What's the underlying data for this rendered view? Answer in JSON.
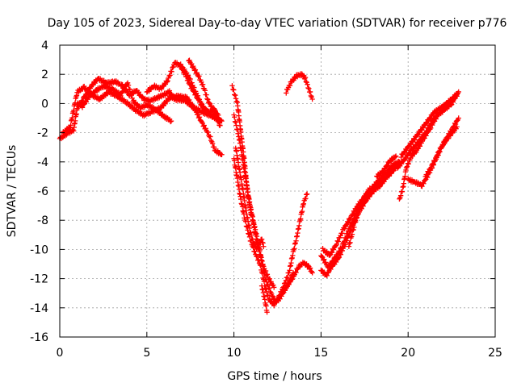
{
  "chart_data": {
    "type": "scatter",
    "title": "Day 105 of 2023, Sidereal Day-to-day VTEC variation (SDTVAR) for receiver p776",
    "xlabel": "GPS time / hours",
    "ylabel": "SDTVAR / TECUs",
    "xlim": [
      0,
      25
    ],
    "ylim": [
      -16,
      4
    ],
    "xticks": [
      "0",
      "5",
      "10",
      "15",
      "20",
      "25"
    ],
    "yticks": [
      "4",
      "2",
      "0",
      "-2",
      "-4",
      "-6",
      "-8",
      "-10",
      "-12",
      "-14",
      "-16"
    ],
    "grid": true,
    "marker": "+",
    "color": "#ff0000",
    "series": [
      {
        "tracks": [
          [
            [
              0.0,
              -2.4
            ],
            [
              0.5,
              -2.0
            ],
            [
              0.8,
              -1.8
            ],
            [
              1.0,
              -0.3
            ],
            [
              1.4,
              0.4
            ],
            [
              1.8,
              1.2
            ],
            [
              2.2,
              1.7
            ],
            [
              2.7,
              1.4
            ],
            [
              3.2,
              1.5
            ],
            [
              3.6,
              1.2
            ],
            [
              4.0,
              0.6
            ],
            [
              4.4,
              0.9
            ],
            [
              4.8,
              0.3
            ],
            [
              5.2,
              0.2
            ],
            [
              5.8,
              0.5
            ],
            [
              6.3,
              0.8
            ],
            [
              6.6,
              0.3
            ],
            [
              7.2,
              0.2
            ],
            [
              7.6,
              -0.2
            ],
            [
              8.2,
              -0.6
            ],
            [
              8.8,
              -0.9
            ],
            [
              9.3,
              -1.2
            ]
          ],
          [
            [
              0.2,
              -2.0
            ],
            [
              0.6,
              -1.6
            ],
            [
              1.0,
              0.8
            ],
            [
              1.4,
              1.1
            ],
            [
              1.8,
              0.6
            ],
            [
              2.3,
              0.3
            ],
            [
              2.8,
              0.8
            ],
            [
              3.3,
              0.5
            ],
            [
              3.8,
              0.1
            ],
            [
              4.3,
              -0.4
            ],
            [
              4.8,
              -0.8
            ],
            [
              5.2,
              -0.6
            ],
            [
              5.8,
              -0.3
            ],
            [
              6.3,
              0.4
            ],
            [
              6.8,
              0.5
            ],
            [
              7.3,
              0.4
            ],
            [
              7.8,
              -0.5
            ],
            [
              8.2,
              -1.4
            ],
            [
              8.6,
              -2.2
            ],
            [
              8.9,
              -3.2
            ],
            [
              9.3,
              -3.5
            ]
          ],
          [
            [
              1.0,
              0.0
            ],
            [
              1.3,
              -0.2
            ],
            [
              1.7,
              0.5
            ],
            [
              2.1,
              0.9
            ],
            [
              2.5,
              1.2
            ],
            [
              3.0,
              1.0
            ],
            [
              3.5,
              0.6
            ],
            [
              3.9,
              1.4
            ],
            [
              4.2,
              0.2
            ],
            [
              4.6,
              -0.3
            ],
            [
              5.0,
              -0.1
            ],
            [
              5.5,
              -0.4
            ],
            [
              6.0,
              -0.9
            ],
            [
              6.4,
              -1.2
            ]
          ],
          [
            [
              5.0,
              0.8
            ],
            [
              5.4,
              1.2
            ],
            [
              5.8,
              1.0
            ],
            [
              6.2,
              1.6
            ],
            [
              6.6,
              2.8
            ],
            [
              6.9,
              2.6
            ],
            [
              7.2,
              2.0
            ],
            [
              7.5,
              1.2
            ],
            [
              7.9,
              0.4
            ],
            [
              8.3,
              -0.4
            ],
            [
              8.6,
              -0.6
            ],
            [
              8.9,
              -0.4
            ],
            [
              9.2,
              -1.5
            ]
          ],
          [
            [
              7.4,
              3.0
            ],
            [
              7.7,
              2.4
            ],
            [
              8.0,
              1.8
            ],
            [
              8.3,
              1.0
            ],
            [
              8.5,
              0.2
            ],
            [
              8.8,
              -0.4
            ],
            [
              9.1,
              -0.8
            ]
          ],
          [
            [
              6.9,
              2.7
            ],
            [
              7.2,
              2.2
            ],
            [
              7.5,
              1.6
            ],
            [
              7.8,
              0.8
            ],
            [
              8.1,
              0.0
            ],
            [
              8.4,
              -0.5
            ],
            [
              8.7,
              -0.8
            ],
            [
              9.0,
              -1.0
            ],
            [
              9.2,
              -1.5
            ]
          ]
        ]
      },
      {
        "tracks": [
          [
            [
              9.9,
              1.2
            ],
            [
              10.2,
              0.0
            ],
            [
              10.4,
              -2.0
            ],
            [
              10.6,
              -4.0
            ],
            [
              10.8,
              -6.2
            ],
            [
              11.0,
              -7.6
            ],
            [
              11.2,
              -8.5
            ],
            [
              11.4,
              -9.6
            ],
            [
              11.6,
              -10.8
            ],
            [
              11.8,
              -12.0
            ],
            [
              12.0,
              -12.6
            ],
            [
              12.2,
              -13.2
            ],
            [
              12.4,
              -13.6
            ],
            [
              12.6,
              -13.4
            ],
            [
              12.9,
              -12.8
            ],
            [
              13.2,
              -12.2
            ],
            [
              13.4,
              -11.6
            ]
          ],
          [
            [
              10.0,
              -0.8
            ],
            [
              10.3,
              -2.4
            ],
            [
              10.5,
              -3.8
            ],
            [
              10.7,
              -5.4
            ],
            [
              10.9,
              -6.8
            ],
            [
              11.1,
              -8.0
            ],
            [
              11.3,
              -9.4
            ],
            [
              11.5,
              -10.3
            ],
            [
              11.7,
              -11.2
            ],
            [
              12.0,
              -12.0
            ],
            [
              12.3,
              -12.6
            ]
          ],
          [
            [
              10.0,
              -3.8
            ],
            [
              10.2,
              -5.2
            ],
            [
              10.4,
              -6.6
            ],
            [
              10.6,
              -7.8
            ],
            [
              10.9,
              -9.2
            ],
            [
              11.2,
              -10.2
            ],
            [
              11.5,
              -11.0
            ],
            [
              11.8,
              -12.6
            ],
            [
              12.0,
              -13.4
            ],
            [
              12.3,
              -13.8
            ],
            [
              12.6,
              -13.2
            ],
            [
              12.9,
              -12.4
            ],
            [
              13.2,
              -11.4
            ],
            [
              13.4,
              -10.2
            ],
            [
              13.6,
              -9.2
            ],
            [
              13.8,
              -8.0
            ],
            [
              14.0,
              -6.8
            ],
            [
              14.2,
              -6.2
            ]
          ],
          [
            [
              10.1,
              -3.0
            ],
            [
              10.3,
              -4.4
            ],
            [
              10.5,
              -5.8
            ],
            [
              10.7,
              -7.4
            ],
            [
              10.9,
              -8.6
            ],
            [
              11.1,
              -9.5
            ],
            [
              11.3,
              -9.9
            ],
            [
              11.6,
              -9.3
            ],
            [
              11.7,
              -9.8
            ]
          ],
          [
            [
              11.6,
              -12.5
            ],
            [
              11.8,
              -13.6
            ],
            [
              11.9,
              -14.3
            ]
          ],
          [
            [
              12.8,
              -13.0
            ],
            [
              13.1,
              -12.4
            ],
            [
              13.4,
              -11.9
            ],
            [
              13.7,
              -11.2
            ],
            [
              14.0,
              -10.9
            ],
            [
              14.3,
              -11.2
            ],
            [
              14.5,
              -11.6
            ]
          ],
          [
            [
              13.0,
              0.8
            ],
            [
              13.3,
              1.5
            ],
            [
              13.6,
              1.9
            ],
            [
              13.9,
              2.0
            ],
            [
              14.1,
              1.7
            ],
            [
              14.3,
              1.0
            ],
            [
              14.5,
              0.3
            ]
          ]
        ]
      },
      {
        "tracks": [
          [
            [
              15.0,
              -10.4
            ],
            [
              15.4,
              -11.2
            ],
            [
              15.8,
              -10.6
            ],
            [
              16.2,
              -9.8
            ],
            [
              16.6,
              -8.6
            ],
            [
              17.0,
              -7.6
            ],
            [
              17.4,
              -6.8
            ],
            [
              17.8,
              -6.2
            ],
            [
              18.2,
              -5.6
            ],
            [
              18.6,
              -5.2
            ],
            [
              19.0,
              -4.8
            ],
            [
              19.4,
              -4.2
            ]
          ],
          [
            [
              15.0,
              -11.4
            ],
            [
              15.3,
              -11.8
            ],
            [
              15.6,
              -11.2
            ],
            [
              16.0,
              -10.6
            ],
            [
              16.4,
              -9.6
            ],
            [
              16.8,
              -8.4
            ],
            [
              17.2,
              -7.4
            ],
            [
              17.6,
              -6.6
            ],
            [
              18.0,
              -6.0
            ],
            [
              18.4,
              -5.6
            ],
            [
              18.8,
              -5.0
            ],
            [
              19.2,
              -4.4
            ]
          ],
          [
            [
              15.1,
              -10.0
            ],
            [
              15.5,
              -10.4
            ],
            [
              15.9,
              -9.6
            ],
            [
              16.3,
              -8.6
            ],
            [
              16.7,
              -7.8
            ],
            [
              17.1,
              -7.0
            ],
            [
              17.5,
              -6.4
            ],
            [
              17.9,
              -5.8
            ],
            [
              18.3,
              -5.3
            ],
            [
              18.7,
              -4.8
            ],
            [
              19.1,
              -4.2
            ],
            [
              19.5,
              -4.0
            ]
          ],
          [
            [
              16.6,
              -9.8
            ],
            [
              16.9,
              -8.4
            ],
            [
              17.2,
              -7.2
            ],
            [
              17.5,
              -6.4
            ],
            [
              17.8,
              -5.8
            ]
          ],
          [
            [
              18.2,
              -5.0
            ],
            [
              18.6,
              -4.6
            ],
            [
              18.9,
              -4.0
            ],
            [
              19.3,
              -3.6
            ]
          ],
          [
            [
              19.5,
              -6.6
            ],
            [
              19.7,
              -5.8
            ],
            [
              19.9,
              -4.4
            ],
            [
              20.2,
              -3.6
            ],
            [
              20.5,
              -3.2
            ],
            [
              20.9,
              -2.4
            ],
            [
              21.3,
              -1.6
            ],
            [
              21.7,
              -0.8
            ],
            [
              22.1,
              -0.4
            ],
            [
              22.5,
              0.0
            ],
            [
              22.8,
              0.6
            ]
          ],
          [
            [
              19.4,
              -4.4
            ],
            [
              19.8,
              -3.8
            ],
            [
              20.2,
              -3.2
            ],
            [
              20.6,
              -2.6
            ],
            [
              21.0,
              -2.0
            ],
            [
              21.4,
              -1.2
            ],
            [
              21.8,
              -0.6
            ],
            [
              22.2,
              0.0
            ],
            [
              22.6,
              0.4
            ],
            [
              22.9,
              0.8
            ]
          ],
          [
            [
              19.6,
              -3.6
            ],
            [
              20.0,
              -3.0
            ],
            [
              20.5,
              -2.2
            ],
            [
              21.0,
              -1.4
            ],
            [
              21.5,
              -0.6
            ],
            [
              22.0,
              -0.2
            ],
            [
              22.5,
              0.2
            ],
            [
              22.8,
              0.5
            ]
          ],
          [
            [
              20.0,
              -5.2
            ],
            [
              20.4,
              -5.4
            ],
            [
              20.8,
              -5.6
            ],
            [
              21.2,
              -4.8
            ],
            [
              21.6,
              -3.8
            ],
            [
              22.0,
              -2.8
            ],
            [
              22.4,
              -2.2
            ],
            [
              22.8,
              -1.6
            ]
          ],
          [
            [
              21.0,
              -5.0
            ],
            [
              21.4,
              -4.2
            ],
            [
              21.8,
              -3.2
            ],
            [
              22.2,
              -2.4
            ],
            [
              22.6,
              -1.6
            ],
            [
              22.9,
              -1.0
            ]
          ]
        ]
      }
    ]
  }
}
